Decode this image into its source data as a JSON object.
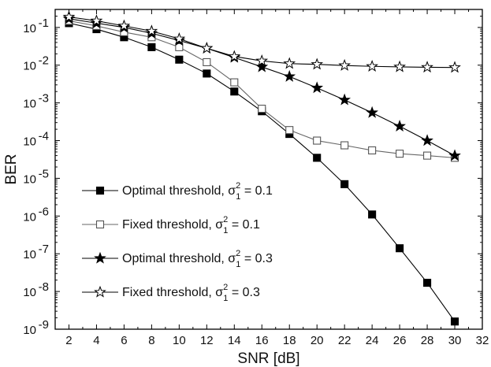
{
  "chart_data": {
    "type": "line",
    "xlabel": "SNR [dB]",
    "ylabel": "BER",
    "xlim": [
      1,
      32
    ],
    "ylim": [
      1e-09,
      0.3
    ],
    "yscale": "log",
    "grid": false,
    "legend_position": "left",
    "x_ticks": [
      2,
      4,
      6,
      8,
      10,
      12,
      14,
      16,
      18,
      20,
      22,
      24,
      26,
      28,
      30,
      32
    ],
    "y_ticks": [
      {
        "mantissa": "10",
        "exp": "-9",
        "value": 1e-09
      },
      {
        "mantissa": "10",
        "exp": "-8",
        "value": 1e-08
      },
      {
        "mantissa": "10",
        "exp": "-7",
        "value": 1e-07
      },
      {
        "mantissa": "10",
        "exp": "-6",
        "value": 1e-06
      },
      {
        "mantissa": "10",
        "exp": "-5",
        "value": 1e-05
      },
      {
        "mantissa": "10",
        "exp": "-4",
        "value": 0.0001
      },
      {
        "mantissa": "10",
        "exp": "-3",
        "value": 0.001
      },
      {
        "mantissa": "10",
        "exp": "-2",
        "value": 0.01
      },
      {
        "mantissa": "10",
        "exp": "-1",
        "value": 0.1
      }
    ],
    "series": [
      {
        "name": "Optimal threshold, σ1² = 0.1",
        "legend": {
          "pre": "Optimal threshold, σ",
          "sup": "2",
          "sub": "1",
          "post": " = 0.1"
        },
        "marker": "square-filled",
        "x": [
          2,
          4,
          6,
          8,
          10,
          12,
          14,
          16,
          18,
          20,
          22,
          24,
          26,
          28,
          30
        ],
        "values": [
          0.13,
          0.09,
          0.055,
          0.03,
          0.014,
          0.006,
          0.002,
          0.0006,
          0.00015,
          3.5e-05,
          7e-06,
          1.1e-06,
          1.4e-07,
          1.7e-08,
          1.6e-09
        ]
      },
      {
        "name": "Fixed threshold, σ1² = 0.1",
        "legend": {
          "pre": "Fixed threshold, σ",
          "sup": "2",
          "sub": "1",
          "post": " = 0.1"
        },
        "marker": "square-open",
        "x": [
          2,
          4,
          6,
          8,
          10,
          12,
          14,
          16,
          18,
          20,
          22,
          24,
          26,
          28,
          30
        ],
        "values": [
          0.15,
          0.11,
          0.075,
          0.055,
          0.03,
          0.012,
          0.0035,
          0.0007,
          0.00019,
          0.0001,
          7.5e-05,
          5.5e-05,
          4.5e-05,
          4e-05,
          3.5e-05
        ]
      },
      {
        "name": "Optimal threshold, σ1² = 0.3",
        "legend": {
          "pre": "Optimal threshold, σ",
          "sup": "2",
          "sub": "1",
          "post": " = 0.3"
        },
        "marker": "star-filled",
        "x": [
          2,
          4,
          6,
          8,
          10,
          12,
          14,
          16,
          18,
          20,
          22,
          24,
          26,
          28,
          30
        ],
        "values": [
          0.17,
          0.13,
          0.1,
          0.07,
          0.045,
          0.028,
          0.016,
          0.009,
          0.005,
          0.0025,
          0.0012,
          0.00055,
          0.00024,
          0.0001,
          4e-05
        ]
      },
      {
        "name": "Fixed threshold, σ1² = 0.3",
        "legend": {
          "pre": "Fixed threshold, σ",
          "sup": "2",
          "sub": "1",
          "post": " = 0.3"
        },
        "marker": "star-open",
        "x": [
          2,
          4,
          6,
          8,
          10,
          12,
          14,
          16,
          18,
          20,
          22,
          24,
          26,
          28,
          30
        ],
        "values": [
          0.19,
          0.15,
          0.11,
          0.08,
          0.05,
          0.028,
          0.017,
          0.013,
          0.011,
          0.0105,
          0.0098,
          0.0093,
          0.009,
          0.0088,
          0.0087
        ]
      }
    ]
  }
}
